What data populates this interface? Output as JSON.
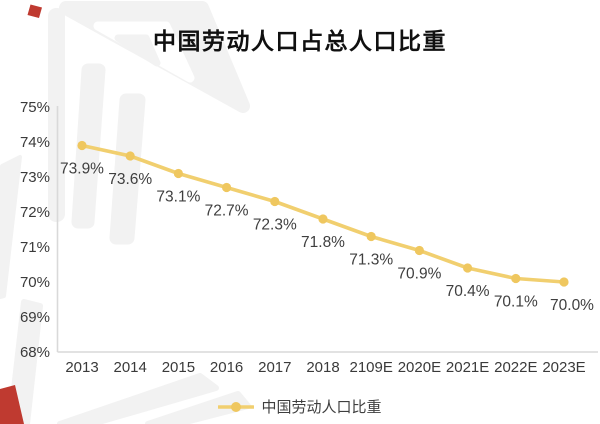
{
  "title": "中国劳动人口占总人口比重",
  "legend": {
    "label": "中国劳动人口比重"
  },
  "colors": {
    "line": "#F1CF6F",
    "marker": "#EFC75F",
    "axis": "#D9D9D9",
    "tick_text": "#3a3a3a",
    "label_text": "#3f3f3f",
    "title_text": "#101010",
    "watermark": "#F2F2F2",
    "decor_red": "#BF3A30"
  },
  "chart_data": {
    "type": "line",
    "title": "中国劳动人口占总人口比重",
    "categories": [
      "2013",
      "2014",
      "2015",
      "2016",
      "2017",
      "2018",
      "2109E",
      "2020E",
      "2021E",
      "2022E",
      "2023E"
    ],
    "series": [
      {
        "name": "中国劳动人口比重",
        "values": [
          73.9,
          73.6,
          73.1,
          72.7,
          72.3,
          71.8,
          71.3,
          70.9,
          70.4,
          70.1,
          70.0
        ]
      }
    ],
    "data_labels": [
      "73.9%",
      "73.6%",
      "73.1%",
      "72.7%",
      "72.3%",
      "71.8%",
      "71.3%",
      "70.9%",
      "70.4%",
      "70.1%",
      "70.0%"
    ],
    "xlabel": "",
    "ylabel": "",
    "ylim": [
      68,
      75
    ],
    "yticks": [
      "75%",
      "74%",
      "73%",
      "72%",
      "71%",
      "70%",
      "69%",
      "68%"
    ],
    "grid": false,
    "legend_position": "bottom",
    "marker": "circle"
  }
}
